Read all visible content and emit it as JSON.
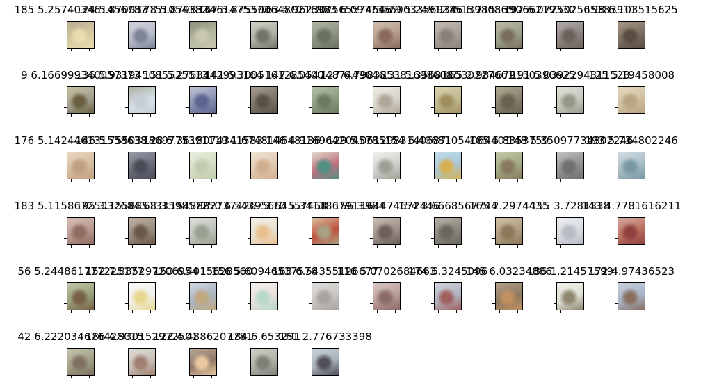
{
  "figure": {
    "panels": [
      {
        "title": "185 5.257403461456787",
        "colors": [
          "#d6c9a0",
          "#e8dcb0",
          "#b8ad90"
        ]
      },
      {
        "title": "124 5.870933151054382",
        "colors": [
          "#b8bccc",
          "#7e8498",
          "#d0d4dd"
        ]
      },
      {
        "title": "178 5.879833461475372",
        "colors": [
          "#b6b8a0",
          "#c8c8b0",
          "#8c8e78"
        ]
      },
      {
        "title": "167 5.875500648021698",
        "colors": [
          "#b0b0a8",
          "#74746a",
          "#cfcfc5"
        ]
      },
      {
        "title": "163 5.962302565574646",
        "colors": [
          "#8c9480",
          "#6a7060",
          "#b0b6a4"
        ]
      },
      {
        "title": "123 6.0977355003356934",
        "colors": [
          "#b49c8c",
          "#8a6a5c",
          "#d0bfb0"
        ]
      },
      {
        "title": "179 5.249127513980865",
        "colors": [
          "#a8a098",
          "#8a827a",
          "#c4bcb4"
        ]
      },
      {
        "title": "186 6.215139066219330",
        "colors": [
          "#98a088",
          "#7a6e60",
          "#c0b8a8"
        ]
      },
      {
        "title": "192 6.072502565383911",
        "colors": [
          "#8c8480",
          "#6c625c",
          "#b4aca8"
        ]
      },
      {
        "title": "198 6.103515625",
        "colors": [
          "#7a6c60",
          "#5a4c42",
          "#a89888"
        ]
      },
      {
        "title": "9 6.166999340057373",
        "colors": [
          "#a0a090",
          "#6a6040",
          "#c8c0a0"
        ]
      },
      {
        "title": "136 5.931945085525513",
        "colors": [
          "#d8e0e8",
          "#c4ccd4",
          "#a8b0a0"
        ]
      },
      {
        "title": "151 5.2763442993164",
        "colors": [
          "#8890b0",
          "#5c6490",
          "#c0c4d0"
        ]
      },
      {
        "title": "141 5.3005161285400",
        "colors": [
          "#7c7468",
          "#5a5248",
          "#a89c8c"
        ]
      },
      {
        "title": "147 6.0547487449646",
        "colors": [
          "#8c9880",
          "#6c7a60",
          "#b4c0a8"
        ]
      },
      {
        "title": "127 6.798385381698608",
        "colors": [
          "#d8d4cc",
          "#b0a898",
          "#eeeae4"
        ]
      },
      {
        "title": "131 5.356816530227661",
        "colors": [
          "#c0b890",
          "#a09060",
          "#ddd4b0"
        ]
      },
      {
        "title": "165 2.984679150390625",
        "colors": [
          "#8a8070",
          "#6a6050",
          "#b0a890"
        ]
      },
      {
        "title": "191 5.0392294311523",
        "colors": [
          "#c8c8c0",
          "#989888",
          "#e0e0d8"
        ]
      },
      {
        "title": "125 5.19458008",
        "colors": [
          "#d0c0a0",
          "#b8a480",
          "#e4d8c0"
        ]
      },
      {
        "title": "176 5.142446131558638",
        "colors": [
          "#d4bc9c",
          "#c0a080",
          "#e8d8c4"
        ]
      },
      {
        "title": "146 5.755037869775391",
        "colors": [
          "#686c78",
          "#4a4c58",
          "#989ca8"
        ]
      },
      {
        "title": "128 5.3618074341583",
        "colors": [
          "#d4dcc4",
          "#c0ccb0",
          "#e8eedc"
        ]
      },
      {
        "title": "119 1.674814648186",
        "colors": [
          "#e0c8b0",
          "#d0b090",
          "#f0e4d4"
        ]
      },
      {
        "title": "146 4.9169642045785",
        "colors": [
          "#c07080",
          "#509080",
          "#e0d8c8"
        ]
      },
      {
        "title": "129 5.0612983140687",
        "colors": [
          "#d0d0cc",
          "#a0a098",
          "#eeeeea"
        ]
      },
      {
        "title": "154 6.40681054064401",
        "colors": [
          "#a8c8d8",
          "#d8b050",
          "#c4dce8"
        ]
      },
      {
        "title": "185 5.8353759",
        "colors": [
          "#a0a880",
          "#887860",
          "#c4c8a8"
        ]
      },
      {
        "title": "148 5.35097734802246",
        "colors": [
          "#909090",
          "#707070",
          "#c0c0c0"
        ]
      },
      {
        "title": "193 5.734802246",
        "colors": [
          "#a8bcc4",
          "#7898a4",
          "#d0dde2"
        ]
      },
      {
        "title": "183 5.115867250326843",
        "colors": [
          "#b89890",
          "#906c60",
          "#d8c0b8"
        ]
      },
      {
        "title": "195 3.155885133598572",
        "colors": [
          "#9a8c80",
          "#6a5848",
          "#c0b0a4"
        ]
      },
      {
        "title": "168 3.154888273742675",
        "colors": [
          "#c0c4bc",
          "#98a090",
          "#dcdfd8"
        ]
      },
      {
        "title": "150 6.54395664557468",
        "colors": [
          "#e8e0d0",
          "#e8c090",
          "#f4eee4"
        ]
      },
      {
        "title": "170 5.3413867913984",
        "colors": [
          "#c05040",
          "#a8a080",
          "#d8c0a0"
        ]
      },
      {
        "title": "156 3.64474672446",
        "colors": [
          "#9c9088",
          "#6c6058",
          "#c8bcb4"
        ]
      },
      {
        "title": "154 3.6668567744",
        "colors": [
          "#8c8880",
          "#6a6660",
          "#b4b0a8"
        ]
      },
      {
        "title": "165 2.2974435",
        "colors": [
          "#b09c80",
          "#8c7858",
          "#d0c0a8"
        ]
      },
      {
        "title": "155 3.7281338",
        "colors": [
          "#d8dce0",
          "#b8bcc4",
          "#eceef0"
        ]
      },
      {
        "title": "143 4.7781616211",
        "colors": [
          "#b87060",
          "#904040",
          "#d4a8a0"
        ]
      },
      {
        "title": "56 5.244861777225177",
        "colors": [
          "#98a078",
          "#786048",
          "#c0c4a8"
        ]
      },
      {
        "title": "152 7.885297206954",
        "colors": [
          "#f0f0ec",
          "#e8d890",
          "#f8f8f4"
        ]
      },
      {
        "title": "150 6.4015628560",
        "colors": [
          "#a8b4c0",
          "#c0a880",
          "#d0d8e0"
        ]
      },
      {
        "title": "156 5.60946537576",
        "colors": [
          "#e8e0dc",
          "#b8d8c8",
          "#f4f0ee"
        ]
      },
      {
        "title": "168 6.54355126677",
        "colors": [
          "#c8c4c0",
          "#a8a4a0",
          "#e0dedc"
        ]
      },
      {
        "title": "116 5.0702684663",
        "colors": [
          "#b89c98",
          "#8c6c68",
          "#d8c8c4"
        ]
      },
      {
        "title": "174 6.3245096",
        "colors": [
          "#b0b4c0",
          "#a06060",
          "#d0d4dc"
        ]
      },
      {
        "title": "145 6.03234886",
        "colors": [
          "#8c7860",
          "#c09060",
          "#b0a088"
        ]
      },
      {
        "title": "186 1.21457599",
        "colors": [
          "#e0e0d8",
          "#908870",
          "#f0f0e8"
        ]
      },
      {
        "title": "172 4.97436523",
        "colors": [
          "#a8b4c8",
          "#887060",
          "#c8d0dc"
        ]
      },
      {
        "title": "42 6.222034676428015",
        "colors": [
          "#a0a088",
          "#807060",
          "#c8c4b0"
        ]
      },
      {
        "title": "186 4.930152972501",
        "colors": [
          "#c8c0b8",
          "#a08070",
          "#e0dcd8"
        ]
      },
      {
        "title": "122 4.4886207781",
        "colors": [
          "#907868",
          "#e8c8a0",
          "#b8a898"
        ]
      },
      {
        "title": "184 6.653291",
        "colors": [
          "#b0b0a8",
          "#808078",
          "#d0d0c8"
        ]
      },
      {
        "title": "161 2.776733398",
        "colors": [
          "#a8b0b8",
          "#505058",
          "#c8d0d8"
        ]
      }
    ]
  }
}
